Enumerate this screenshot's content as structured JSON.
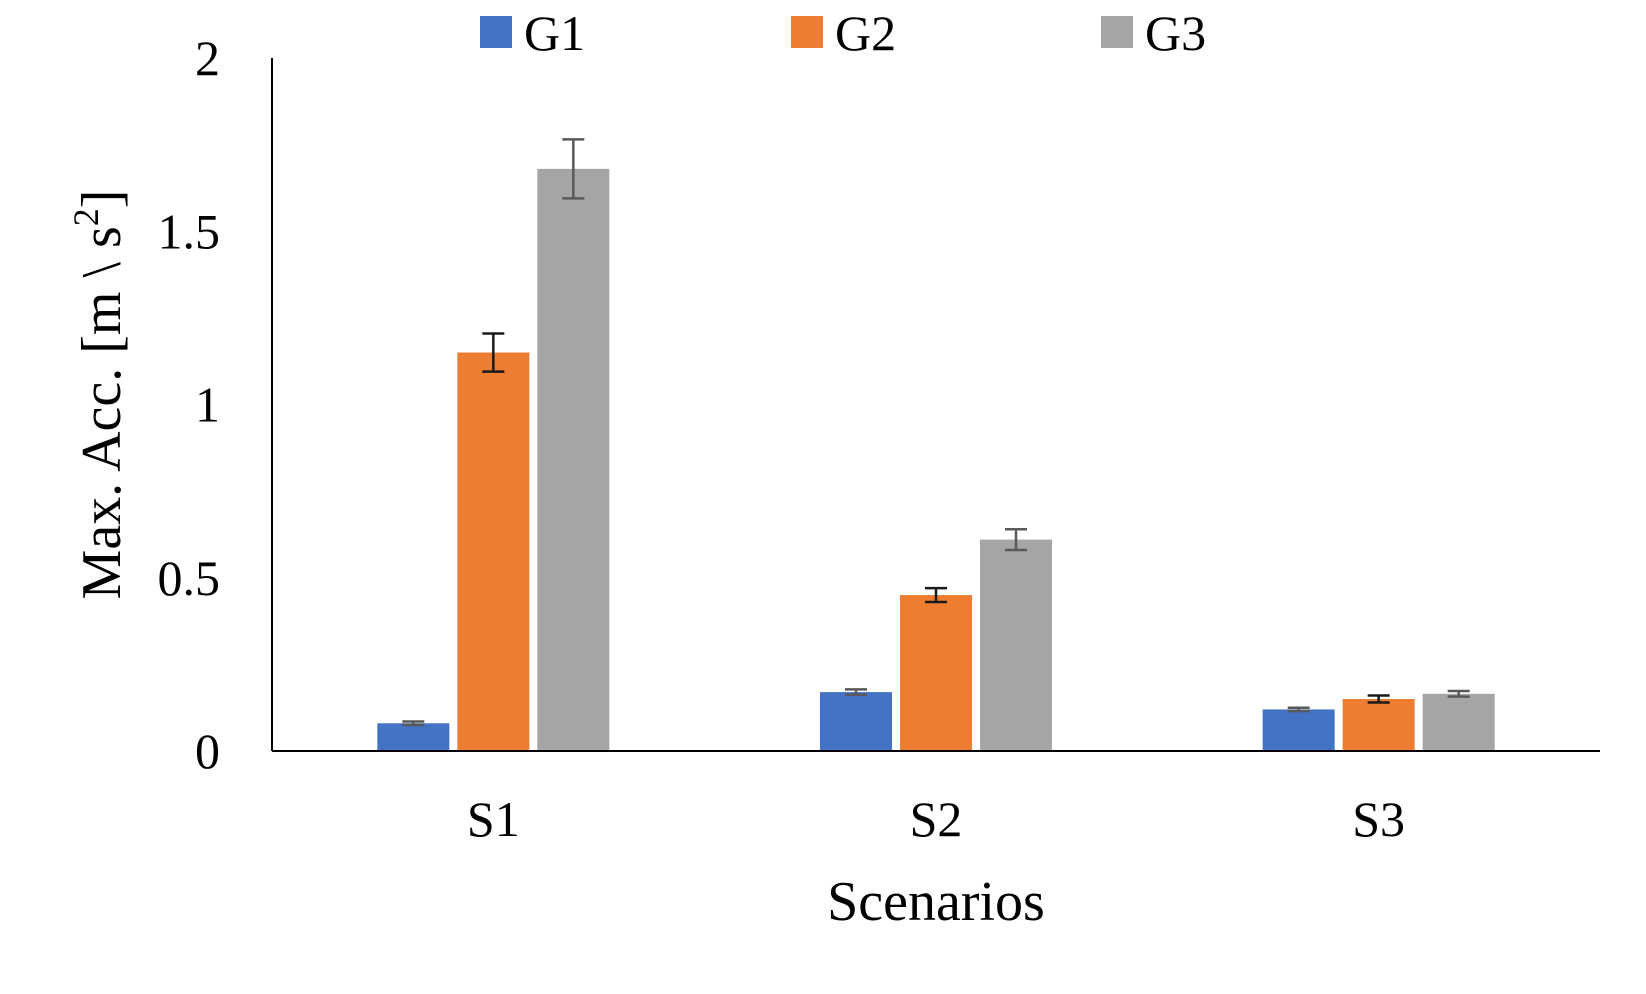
{
  "chart_data": {
    "type": "bar",
    "title": "",
    "xlabel": "Scenarios",
    "ylabel": "Max. Acc. [m \\ s",
    "ylabel_superscript": "2",
    "ylabel_close": "]",
    "categories": [
      "S1",
      "S2",
      "S3"
    ],
    "ylim": [
      0,
      2
    ],
    "yticks": [
      0,
      0.5,
      1,
      1.5,
      2
    ],
    "ytick_labels": [
      "0",
      "0.5",
      "1",
      "1.5",
      "2"
    ],
    "grid": false,
    "legend_position": "top-center",
    "series": [
      {
        "name": "G1",
        "color": "#4472C4",
        "values": [
          0.08,
          0.17,
          0.12
        ],
        "errors": [
          0.005,
          0.008,
          0.005
        ]
      },
      {
        "name": "G2",
        "color": "#ED7D31",
        "values": [
          1.15,
          0.45,
          0.15
        ],
        "errors": [
          0.055,
          0.02,
          0.01
        ]
      },
      {
        "name": "G3",
        "color": "#A5A5A5",
        "values": [
          1.68,
          0.61,
          0.165
        ],
        "errors": [
          0.085,
          0.03,
          0.008
        ]
      }
    ]
  }
}
